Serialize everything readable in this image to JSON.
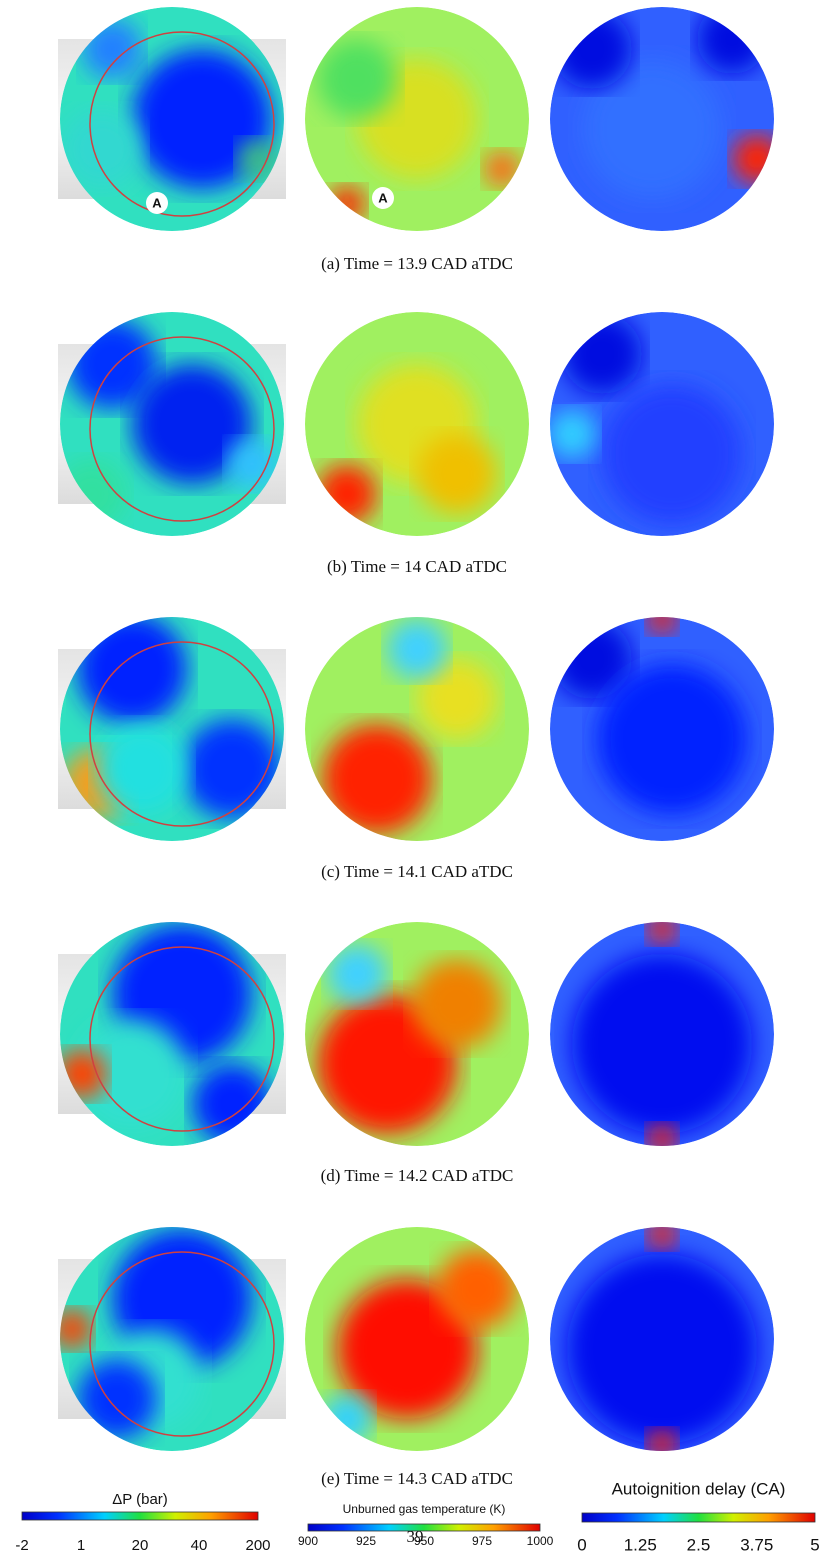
{
  "panels": [
    {
      "caption": "(a) Time = 13.9 CAD aTDC",
      "markers": [
        "A",
        "A"
      ]
    },
    {
      "caption": "(b) Time = 14 CAD aTDC"
    },
    {
      "caption": "(c) Time = 14.1 CAD aTDC"
    },
    {
      "caption": "(d) Time = 14.2 CAD aTDC"
    },
    {
      "caption": "(e) Time = 14.3 CAD aTDC"
    }
  ],
  "colorbars": [
    {
      "title": "ΔP (bar)",
      "ticks": [
        "-2",
        "1",
        "20",
        "40",
        "200"
      ]
    },
    {
      "title": "Unburned gas temperature (K)",
      "ticks": [
        "900",
        "925",
        "950",
        "975",
        "1000"
      ]
    },
    {
      "title": "Autoignition delay (CA)",
      "ticks": [
        "0",
        "1.25",
        "2.5",
        "3.75",
        "5"
      ]
    }
  ],
  "page_number": "39"
}
